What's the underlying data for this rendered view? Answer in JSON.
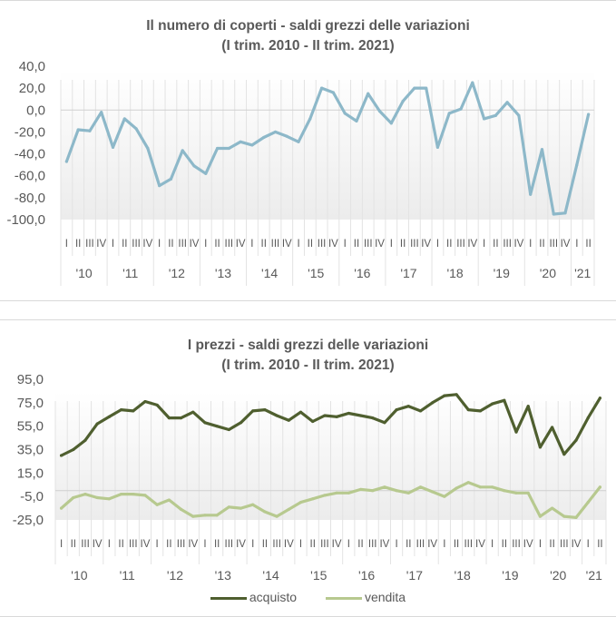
{
  "chart_data": [
    {
      "type": "line",
      "title": "Il numero di coperti - saldi grezzi delle variazioni",
      "subtitle": "(I trim. 2010 - II trim. 2021)",
      "xlabel": "",
      "ylabel": "",
      "ylim": [
        -100,
        40
      ],
      "yticks": [
        40,
        20,
        0,
        -20,
        -40,
        -60,
        -80,
        -100
      ],
      "ytick_labels": [
        "40,0",
        "20,0",
        "0,0",
        "-20,0",
        "-40,0",
        "-60,0",
        "-80,0",
        "-100,0"
      ],
      "grid": "vertical category lines below series",
      "legend": "none",
      "years": [
        "'10",
        "'11",
        "'12",
        "'13",
        "'14",
        "'15",
        "'16",
        "'17",
        "'18",
        "'19",
        "'20",
        "'21"
      ],
      "quarter_labels": [
        "I",
        "II",
        "III",
        "IV"
      ],
      "series": [
        {
          "name": "coperti",
          "color": "#8db8c9",
          "values": [
            -47,
            -18,
            -19,
            -2,
            -34,
            -8,
            -17,
            -35,
            -69,
            -63,
            -37,
            -51,
            -58,
            -35,
            -35,
            -29,
            -32,
            -25,
            -20,
            -24,
            -29,
            -8,
            20,
            16,
            -3,
            -10,
            15,
            -1,
            -12,
            8,
            20,
            20,
            -34,
            -3,
            1,
            25,
            -8,
            -5,
            7,
            -5,
            -77,
            -36,
            -95,
            -94,
            -50,
            -4
          ]
        }
      ]
    },
    {
      "type": "line",
      "title": "I prezzi - saldi grezzi delle variazioni",
      "subtitle": "(I trim. 2010 - II trim. 2021)",
      "xlabel": "",
      "ylabel": "",
      "ylim": [
        -25,
        95
      ],
      "yticks": [
        95,
        75,
        55,
        35,
        15,
        -5,
        -25
      ],
      "ytick_labels": [
        "95,0",
        "75,0",
        "55,0",
        "35,0",
        "15,0",
        "-5,0",
        "-25,0"
      ],
      "grid": "vertical category lines below series",
      "legend": "bottom",
      "years": [
        "'10",
        "'11",
        "'12",
        "'13",
        "'14",
        "'15",
        "'16",
        "'17",
        "'18",
        "'19",
        "'20",
        "'21"
      ],
      "quarter_labels": [
        "I",
        "II",
        "III",
        "IV"
      ],
      "series": [
        {
          "name": "acquisto",
          "color": "#4f5f2f",
          "values": [
            30,
            35,
            43,
            57,
            63,
            69,
            68,
            76,
            73,
            62,
            62,
            67,
            58,
            55,
            52,
            58,
            68,
            69,
            64,
            60,
            67,
            59,
            64,
            63,
            66,
            64,
            62,
            58,
            69,
            72,
            68,
            75,
            81,
            82,
            69,
            68,
            74,
            77,
            50,
            72,
            37,
            54,
            31,
            43,
            62,
            79
          ]
        },
        {
          "name": "vendita",
          "color": "#b7c98f",
          "values": [
            -15,
            -6,
            -3,
            -6,
            -7,
            -3,
            -3,
            -4,
            -12,
            -8,
            -16,
            -22,
            -21,
            -21,
            -14,
            -15,
            -12,
            -18,
            -22,
            -16,
            -10,
            -7,
            -4,
            -2,
            -2,
            1,
            0,
            3,
            0,
            -2,
            3,
            -1,
            -5,
            2,
            7,
            3,
            3,
            0,
            -2,
            -2,
            -22,
            -15,
            -22,
            -23,
            -10,
            3
          ]
        }
      ]
    }
  ],
  "legend": {
    "items": [
      {
        "label": "acquisto",
        "color": "#4f5f2f"
      },
      {
        "label": "vendita",
        "color": "#b7c98f"
      }
    ]
  }
}
